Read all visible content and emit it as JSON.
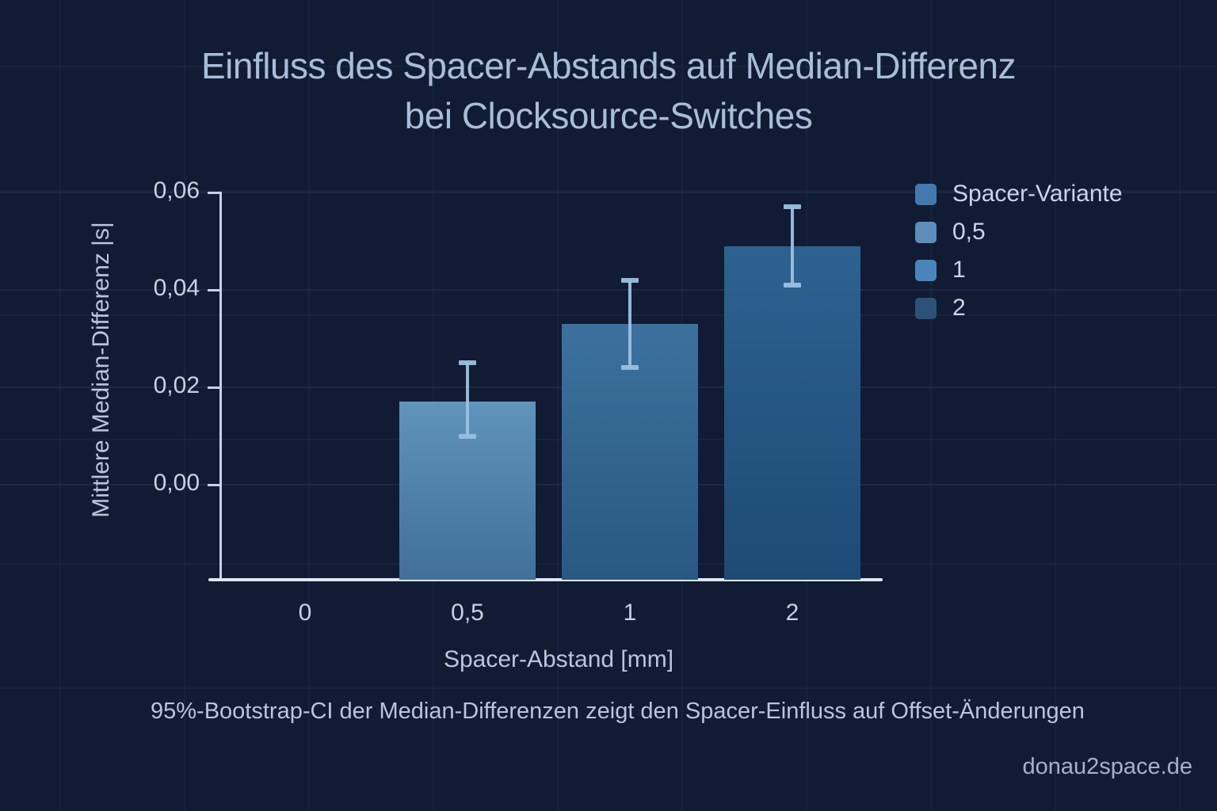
{
  "title_lines": [
    "Einfluss des Spacer-Abstands auf Median-Differenz",
    "bei Clocksource-Switches"
  ],
  "caption": "95%-Bootstrap-CI der Median-Differenzen zeigt den Spacer-Einfluss auf Offset-Änderungen",
  "watermark": "donau2space.de",
  "colors": {
    "background": "#111b34",
    "title_text": "#a8bdd9",
    "axis_line": "#c3d3e8",
    "baseline": "#dce8f6",
    "tick_text": "#c6d2e4",
    "error_bar": "#9bc0e0"
  },
  "legend": {
    "title": {
      "label": "Spacer-Variante",
      "color": "#4379ad"
    },
    "items": [
      {
        "label": "0,5",
        "color": "#5d8dbb"
      },
      {
        "label": "1",
        "color": "#4a85b9"
      },
      {
        "label": "2",
        "color": "#2d5278"
      }
    ]
  },
  "chart_data": {
    "type": "bar",
    "title": "Einfluss des Spacer-Abstands auf Median-Differenz bei Clocksource-Switches",
    "xlabel": "Spacer-Abstand [mm]",
    "ylabel": "Mittlere Median-Differenz |s|",
    "categories": [
      "0",
      "0,5",
      "1",
      "2"
    ],
    "values": [
      0,
      0.017,
      0.033,
      0.049
    ],
    "ci_low": [
      null,
      0.01,
      0.024,
      0.041
    ],
    "ci_high": [
      null,
      0.025,
      0.042,
      0.057
    ],
    "ci_level": "95%-Bootstrap-CI",
    "ylim": [
      -0.02,
      0.06
    ],
    "yticks": [
      {
        "value": 0.0,
        "label": "0,00"
      },
      {
        "value": 0.02,
        "label": "0,02"
      },
      {
        "value": 0.04,
        "label": "0,04"
      },
      {
        "value": 0.06,
        "label": "0,06"
      }
    ],
    "grid": true,
    "legend_position": "upper right",
    "bar_colors": [
      null,
      {
        "top": "#6094ba",
        "bottom": "#416f9a"
      },
      {
        "top": "#3d719d",
        "bottom": "#295884"
      },
      {
        "top": "#2d6290",
        "bottom": "#1e4a76"
      }
    ]
  }
}
